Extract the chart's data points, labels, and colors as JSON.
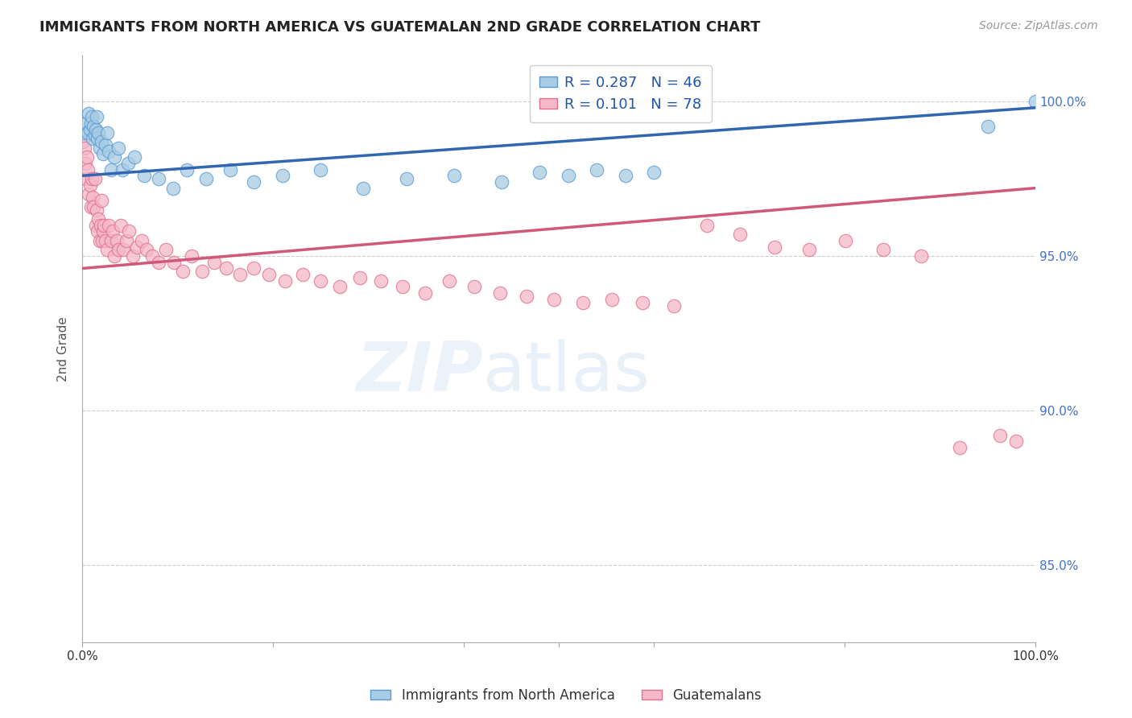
{
  "title": "IMMIGRANTS FROM NORTH AMERICA VS GUATEMALAN 2ND GRADE CORRELATION CHART",
  "source": "Source: ZipAtlas.com",
  "ylabel": "2nd Grade",
  "xlim": [
    0.0,
    1.0
  ],
  "ylim": [
    0.825,
    1.015
  ],
  "yticks": [
    0.85,
    0.9,
    0.95,
    1.0
  ],
  "ytick_labels": [
    "85.0%",
    "90.0%",
    "95.0%",
    "100.0%"
  ],
  "blue_R": 0.287,
  "blue_N": 46,
  "pink_R": 0.101,
  "pink_N": 78,
  "blue_color": "#a8cce4",
  "blue_edge_color": "#5b9bd5",
  "blue_line_color": "#3166b0",
  "pink_color": "#f4b8c8",
  "pink_edge_color": "#e07090",
  "pink_line_color": "#d05878",
  "legend_blue_label": "Immigrants from North America",
  "legend_pink_label": "Guatemalans",
  "blue_x": [
    0.002,
    0.004,
    0.006,
    0.007,
    0.008,
    0.009,
    0.01,
    0.011,
    0.012,
    0.013,
    0.014,
    0.015,
    0.016,
    0.017,
    0.018,
    0.02,
    0.022,
    0.024,
    0.026,
    0.028,
    0.03,
    0.034,
    0.038,
    0.042,
    0.048,
    0.055,
    0.065,
    0.08,
    0.095,
    0.11,
    0.13,
    0.155,
    0.18,
    0.21,
    0.25,
    0.295,
    0.34,
    0.39,
    0.44,
    0.48,
    0.51,
    0.54,
    0.57,
    0.6,
    0.95,
    1.0
  ],
  "blue_y": [
    0.99,
    0.993,
    0.99,
    0.996,
    0.991,
    0.993,
    0.995,
    0.988,
    0.992,
    0.989,
    0.991,
    0.995,
    0.988,
    0.99,
    0.985,
    0.987,
    0.983,
    0.986,
    0.99,
    0.984,
    0.978,
    0.982,
    0.985,
    0.978,
    0.98,
    0.982,
    0.976,
    0.975,
    0.972,
    0.978,
    0.975,
    0.978,
    0.974,
    0.976,
    0.978,
    0.972,
    0.975,
    0.976,
    0.974,
    0.977,
    0.976,
    0.978,
    0.976,
    0.977,
    0.992,
    1.0
  ],
  "pink_x": [
    0.001,
    0.002,
    0.003,
    0.004,
    0.005,
    0.006,
    0.007,
    0.008,
    0.009,
    0.01,
    0.011,
    0.012,
    0.013,
    0.014,
    0.015,
    0.016,
    0.017,
    0.018,
    0.019,
    0.02,
    0.021,
    0.022,
    0.023,
    0.024,
    0.026,
    0.028,
    0.03,
    0.032,
    0.034,
    0.036,
    0.038,
    0.04,
    0.043,
    0.046,
    0.049,
    0.053,
    0.057,
    0.062,
    0.067,
    0.073,
    0.08,
    0.088,
    0.096,
    0.105,
    0.115,
    0.126,
    0.138,
    0.151,
    0.165,
    0.18,
    0.196,
    0.213,
    0.231,
    0.25,
    0.27,
    0.291,
    0.313,
    0.336,
    0.36,
    0.385,
    0.411,
    0.438,
    0.466,
    0.495,
    0.525,
    0.556,
    0.588,
    0.621,
    0.655,
    0.69,
    0.726,
    0.763,
    0.801,
    0.84,
    0.88,
    0.921,
    0.963,
    0.98
  ],
  "pink_y": [
    0.987,
    0.985,
    0.98,
    0.975,
    0.982,
    0.978,
    0.97,
    0.973,
    0.966,
    0.975,
    0.969,
    0.966,
    0.975,
    0.96,
    0.965,
    0.958,
    0.962,
    0.955,
    0.96,
    0.968,
    0.955,
    0.958,
    0.96,
    0.955,
    0.952,
    0.96,
    0.955,
    0.958,
    0.95,
    0.955,
    0.952,
    0.96,
    0.952,
    0.955,
    0.958,
    0.95,
    0.953,
    0.955,
    0.952,
    0.95,
    0.948,
    0.952,
    0.948,
    0.945,
    0.95,
    0.945,
    0.948,
    0.946,
    0.944,
    0.946,
    0.944,
    0.942,
    0.944,
    0.942,
    0.94,
    0.943,
    0.942,
    0.94,
    0.938,
    0.942,
    0.94,
    0.938,
    0.937,
    0.936,
    0.935,
    0.936,
    0.935,
    0.934,
    0.96,
    0.957,
    0.953,
    0.952,
    0.955,
    0.952,
    0.95,
    0.888,
    0.892,
    0.89
  ],
  "blue_trendline_x": [
    0.0,
    1.0
  ],
  "blue_trendline_y": [
    0.976,
    0.998
  ],
  "pink_trendline_x": [
    0.0,
    1.0
  ],
  "pink_trendline_y": [
    0.946,
    0.972
  ]
}
